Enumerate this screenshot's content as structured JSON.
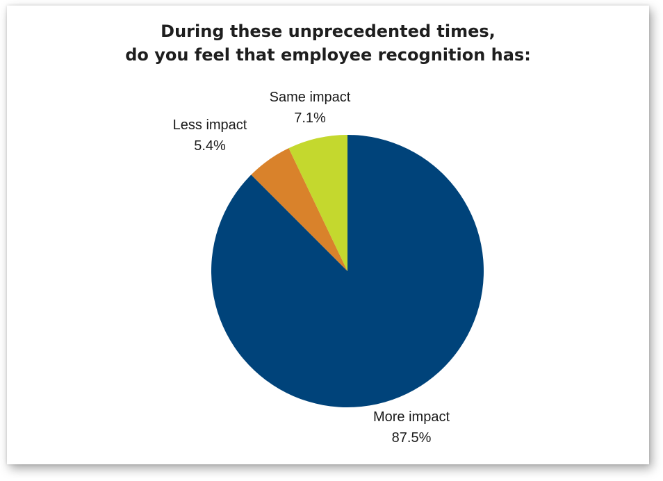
{
  "chart_data": {
    "type": "pie",
    "title": [
      "During these unprecedented times,",
      "do you feel that employee recognition has:"
    ],
    "categories": [
      "More impact",
      "Less impact",
      "Same impact"
    ],
    "values": [
      87.5,
      5.4,
      7.1
    ],
    "value_labels": [
      "87.5%",
      "5.4%",
      "7.1%"
    ],
    "colors": [
      "#00437a",
      "#d9822b",
      "#c4d82e"
    ],
    "start": "12 o'clock",
    "direction": "clockwise",
    "legend": "none"
  }
}
